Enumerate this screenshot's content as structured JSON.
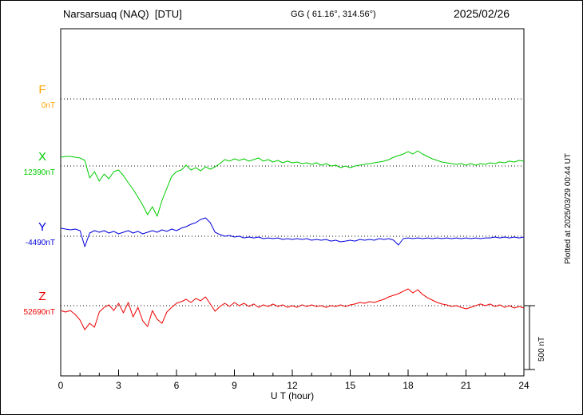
{
  "header": {
    "station": "Narsarsuaq (NAQ)  [DTU]",
    "coords": "GG ( 61.16°, 314.56°)",
    "date": "2025/02/26"
  },
  "scale_label": "500 nT",
  "plotted_at": "Plotted at 2025/03/29 00:44 UT",
  "chart_data": {
    "type": "line",
    "title": "Narsarsuaq (NAQ) [DTU] magnetogram",
    "date": "2025/02/26",
    "xlabel": "U T (hour)",
    "x_range": [
      0,
      24
    ],
    "x_ticks": [
      0,
      3,
      6,
      9,
      12,
      15,
      18,
      21,
      24
    ],
    "x_minor_tick_step_hours": 1,
    "sample_interval_hours": 0.25,
    "scale_bar_nT": 500,
    "grid": "dotted-baselines",
    "series": [
      {
        "name": "F",
        "color": "#FFA500",
        "baseline_label": "0nT",
        "baseline_nT": 0,
        "trace_visible": false,
        "values_rel_nT": []
      },
      {
        "name": "X",
        "color": "#00CC00",
        "baseline_label": "12390nT",
        "baseline_nT": 12390,
        "trace_visible": true,
        "values_rel_nT": [
          69,
          75,
          75,
          69,
          63,
          44,
          -94,
          -44,
          -119,
          -63,
          -100,
          -44,
          -31,
          -75,
          -131,
          -181,
          -244,
          -306,
          -381,
          -319,
          -394,
          -269,
          -175,
          -81,
          -44,
          -31,
          6,
          -31,
          -13,
          -38,
          -6,
          -25,
          -6,
          19,
          50,
          38,
          56,
          44,
          56,
          38,
          50,
          63,
          38,
          50,
          31,
          44,
          25,
          38,
          25,
          31,
          19,
          25,
          13,
          25,
          6,
          19,
          0,
          6,
          -13,
          0,
          -13,
          0,
          6,
          13,
          19,
          25,
          31,
          38,
          50,
          69,
          81,
          94,
          113,
          94,
          119,
          94,
          75,
          56,
          44,
          31,
          25,
          19,
          13,
          19,
          6,
          19,
          6,
          19,
          13,
          25,
          19,
          31,
          25,
          38,
          31,
          44,
          38
        ]
      },
      {
        "name": "Y",
        "color": "#0000DD",
        "baseline_label": "-4490nT",
        "baseline_nT": -4490,
        "trace_visible": true,
        "values_rel_nT": [
          63,
          56,
          50,
          56,
          44,
          -81,
          25,
          44,
          31,
          44,
          25,
          38,
          19,
          31,
          44,
          25,
          38,
          19,
          31,
          44,
          31,
          50,
          38,
          56,
          44,
          63,
          75,
          94,
          106,
          131,
          144,
          106,
          31,
          13,
          0,
          6,
          -6,
          0,
          -13,
          -6,
          -13,
          -6,
          -19,
          -13,
          -19,
          -13,
          -25,
          -19,
          -25,
          -19,
          -25,
          -19,
          -31,
          -25,
          -31,
          -25,
          -38,
          -31,
          -44,
          -38,
          -31,
          -38,
          -25,
          -31,
          -25,
          -31,
          -19,
          -25,
          -19,
          -31,
          -69,
          -19,
          -13,
          -19,
          -13,
          -19,
          -13,
          -19,
          -13,
          -19,
          -13,
          -19,
          -13,
          -19,
          -13,
          -19,
          -13,
          -19,
          -13,
          -13,
          -6,
          -13,
          -6,
          -13,
          -6,
          -13,
          -6
        ]
      },
      {
        "name": "Z",
        "color": "#EE0000",
        "baseline_label": "52690nT",
        "baseline_nT": 52690,
        "trace_visible": true,
        "values_rel_nT": [
          -38,
          -50,
          -38,
          -69,
          -113,
          -188,
          -138,
          -169,
          -50,
          -13,
          6,
          -38,
          19,
          -56,
          25,
          -88,
          -13,
          -119,
          -163,
          -38,
          -106,
          -138,
          -50,
          -13,
          19,
          31,
          50,
          25,
          56,
          38,
          69,
          13,
          -44,
          -6,
          19,
          -6,
          25,
          0,
          19,
          -6,
          13,
          -13,
          6,
          -6,
          13,
          -6,
          6,
          -13,
          0,
          -13,
          6,
          -6,
          6,
          -6,
          0,
          -13,
          0,
          -6,
          6,
          -6,
          6,
          13,
          25,
          19,
          31,
          25,
          38,
          50,
          69,
          81,
          94,
          113,
          131,
          100,
          125,
          88,
          63,
          44,
          25,
          13,
          6,
          -6,
          0,
          -13,
          -25,
          -13,
          0,
          13,
          0,
          13,
          -6,
          6,
          -13,
          0,
          -19,
          -6,
          -19
        ]
      }
    ]
  }
}
